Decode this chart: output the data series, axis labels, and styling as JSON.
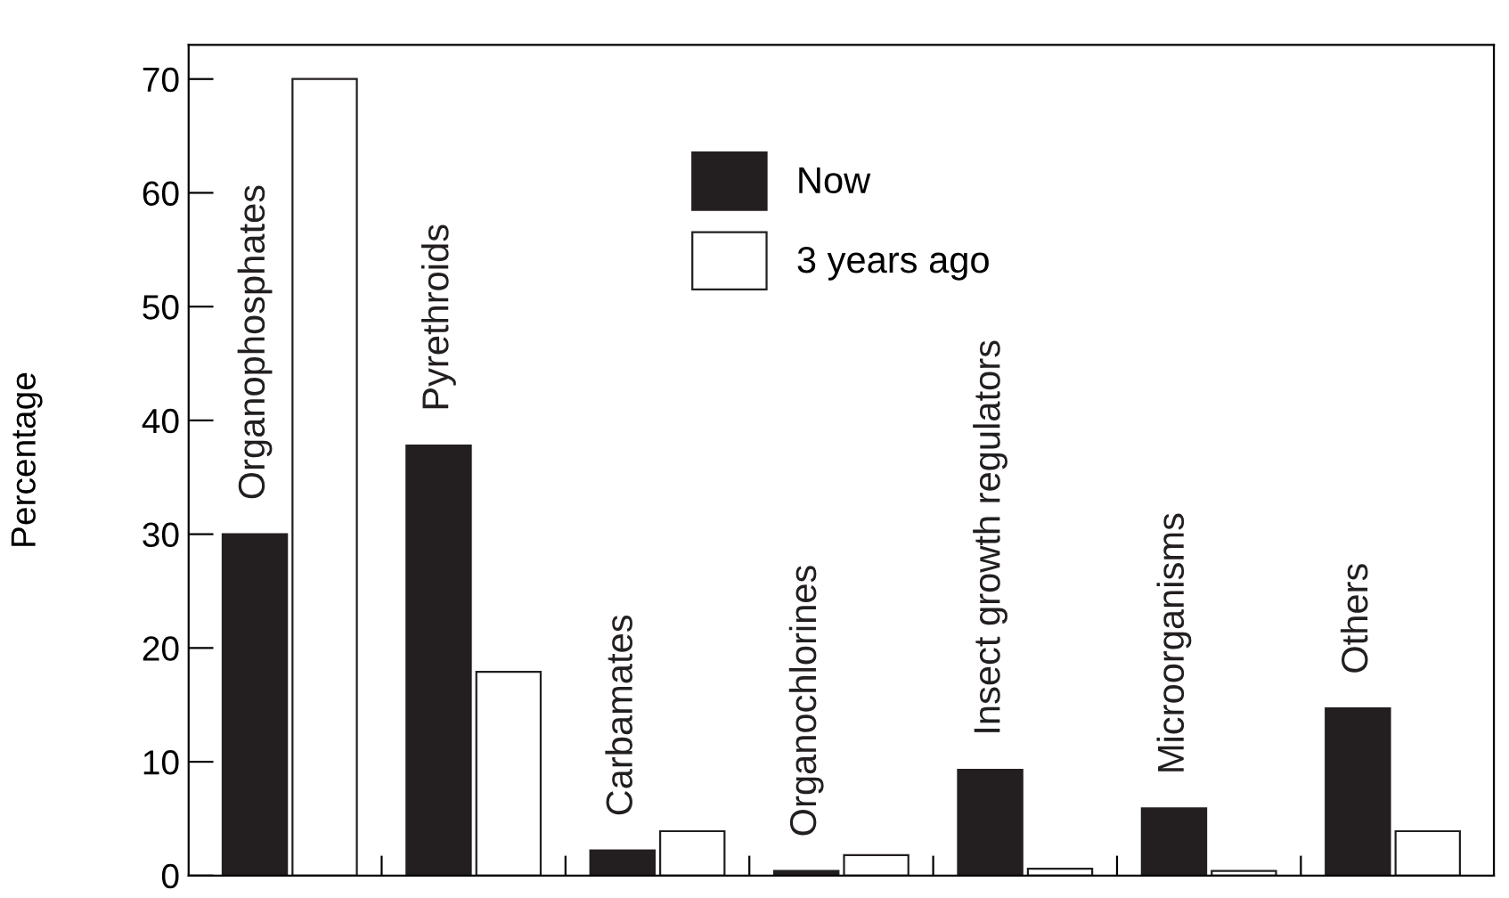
{
  "chart_data": {
    "type": "bar",
    "ylabel": "Percentage",
    "categories": [
      "Organophosphates",
      "Pyrethroids",
      "Carbamates",
      "Organochlorines",
      "Insect growth regulators",
      "Microorganisms",
      "Others"
    ],
    "series": [
      {
        "name": "Now",
        "color": "#231f20",
        "values": [
          30,
          37.8,
          2.2,
          0.4,
          9.3,
          5.9,
          14.7
        ]
      },
      {
        "name": "3 years ago",
        "color": "#ffffff",
        "values": [
          70,
          17.9,
          3.9,
          1.8,
          0.6,
          0.4,
          3.9
        ]
      }
    ],
    "ylim": [
      0,
      73
    ],
    "yticks": [
      0,
      10,
      20,
      30,
      40,
      50,
      60,
      70
    ],
    "grid": false,
    "legend": "top"
  }
}
